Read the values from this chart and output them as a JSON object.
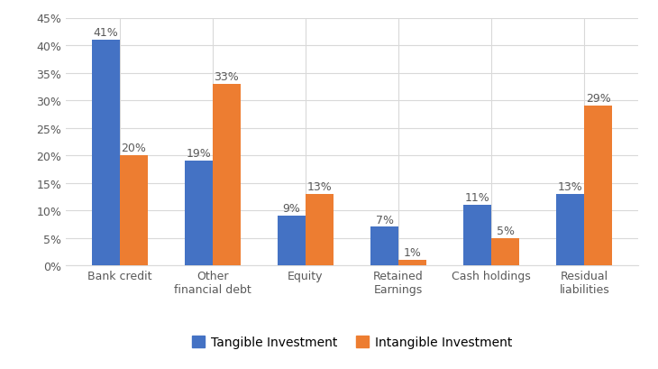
{
  "categories": [
    "Bank credit",
    "Other\nfinancial debt",
    "Equity",
    "Retained\nEarnings",
    "Cash holdings",
    "Residual\nliabilities"
  ],
  "tangible": [
    0.41,
    0.19,
    0.09,
    0.07,
    0.11,
    0.13
  ],
  "intangible": [
    0.2,
    0.33,
    0.13,
    0.01,
    0.05,
    0.29
  ],
  "tangible_labels": [
    "41%",
    "19%",
    "9%",
    "7%",
    "11%",
    "13%"
  ],
  "intangible_labels": [
    "20%",
    "33%",
    "13%",
    "1%",
    "5%",
    "29%"
  ],
  "tangible_color": "#4472C4",
  "intangible_color": "#ED7D31",
  "ylim": [
    0,
    0.45
  ],
  "yticks": [
    0.0,
    0.05,
    0.1,
    0.15,
    0.2,
    0.25,
    0.3,
    0.35,
    0.4,
    0.45
  ],
  "ytick_labels": [
    "0%",
    "5%",
    "10%",
    "15%",
    "20%",
    "25%",
    "30%",
    "35%",
    "40%",
    "45%"
  ],
  "legend_tangible": "Tangible Investment",
  "legend_intangible": "Intangible Investment",
  "bar_width": 0.3,
  "background_color": "#FFFFFF",
  "outer_border_color": "#BFBFBF",
  "grid_color": "#D9D9D9",
  "label_fontsize": 9,
  "tick_fontsize": 9,
  "legend_fontsize": 10
}
